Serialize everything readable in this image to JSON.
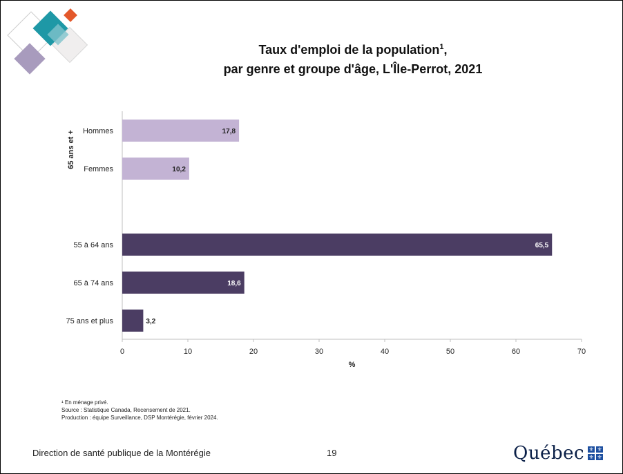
{
  "title": {
    "line1": "Taux d'emploi de la population",
    "footnote_ref": "1",
    "line1_end": ",",
    "line2": "par genre et groupe d'âge, L'Île-Perrot, 2021"
  },
  "chart_data": {
    "type": "bar",
    "orientation": "horizontal",
    "group_label": "65 ans et +",
    "categories": [
      "Hommes",
      "Femmes",
      "55 à 64 ans",
      "65 à 74 ans",
      "75 ans et plus"
    ],
    "values": [
      17.8,
      10.2,
      65.5,
      18.6,
      3.2
    ],
    "value_labels": [
      "17,8",
      "10,2",
      "65,5",
      "18,6",
      "3,2"
    ],
    "bar_colors": [
      "#c3b3d4",
      "#c3b3d4",
      "#4b3d63",
      "#4b3d63",
      "#4b3d63"
    ],
    "label_colors": [
      "#222222",
      "#222222",
      "#ffffff",
      "#ffffff",
      "#222222"
    ],
    "xlabel": "%",
    "xlim": [
      0,
      70
    ],
    "xticks": [
      0,
      10,
      20,
      30,
      40,
      50,
      60,
      70
    ],
    "grid": false
  },
  "notes": {
    "footnote": "¹ En ménage privé.",
    "source": "Source : Statistique Canada, Recensement de 2021.",
    "production": "Production : équipe Surveillance, DSP Montérégie, février 2024."
  },
  "footer": {
    "organization": "Direction de santé publique de la Montérégie",
    "page_number": "19",
    "brand": "Québec",
    "brand_icon": "fleur-de-lis-flag-icon"
  },
  "colors": {
    "light_bar": "#c3b3d4",
    "dark_bar": "#4b3d63",
    "logo_teal": "#1e98a6",
    "logo_orange": "#e3582b",
    "logo_purple": "#a89bbd"
  }
}
